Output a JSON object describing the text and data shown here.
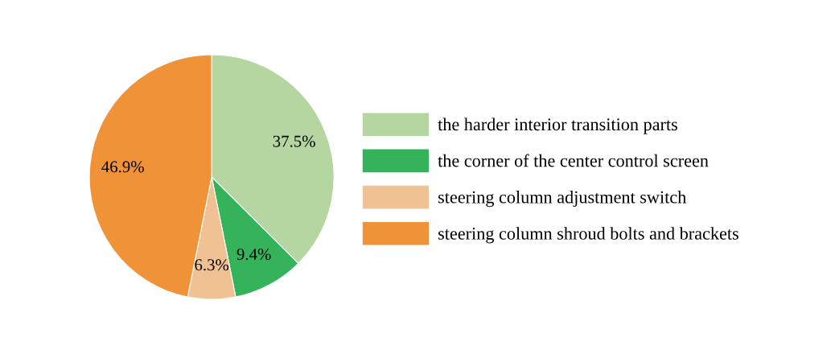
{
  "chart_data": {
    "type": "pie",
    "categories": [
      "the harder interior transition parts",
      "the corner of the center control screen",
      "steering column adjustment switch",
      "steering column shroud bolts and brackets"
    ],
    "values": [
      37.5,
      9.4,
      6.3,
      46.9
    ],
    "value_labels": [
      "37.5%",
      "9.4%",
      "6.3%",
      "46.9%"
    ],
    "colors": [
      "#b5d6a0",
      "#35b35a",
      "#efc193",
      "#f09338"
    ],
    "legend": "right"
  }
}
